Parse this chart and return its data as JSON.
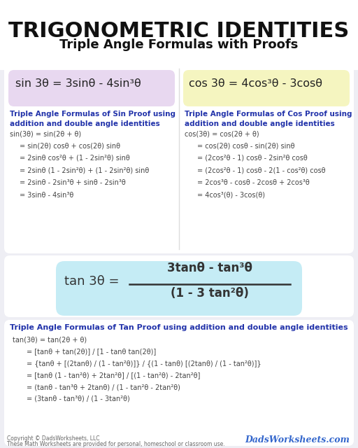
{
  "title": "TRIGONOMETRIC IDENTITIES",
  "subtitle": "Triple Angle Formulas with Proofs",
  "bg_color": "#eeeef4",
  "white_panel_color": "#ffffff",
  "sin_box_color": "#e8d8f0",
  "cos_box_color": "#f5f5c0",
  "tan_box_color": "#c5ecf5",
  "header_text_color": "#111111",
  "blue_text_color": "#2233aa",
  "proof_text_color": "#444444",
  "watermark_color": "#3366cc",
  "sin_proof_title": "Triple Angle Formulas of Sin Proof using\naddition and double angle identities",
  "cos_proof_title": "Triple Angle Formulas of Cos Proof using\naddition and double angle identities",
  "tan_proof_title": "Triple Angle Formulas of Tan Proof using addition and double angle identities",
  "sin_proof_lines": [
    "sin(3θ) = sin(2θ + θ)",
    "= sin(2θ) cosθ + cos(2θ) sinθ",
    "= 2sinθ cos²θ + (1 - 2sin²θ) sinθ",
    "= 2sinθ (1 - 2sin²θ) + (1 - 2sin²θ) sinθ",
    "= 2sinθ - 2sin³θ + sinθ - 2sin³θ",
    "= 3sinθ - 4sin³θ"
  ],
  "cos_proof_lines": [
    "cos(3θ) = cos(2θ + θ)",
    "= cos(2θ) cosθ - sin(2θ) sinθ",
    "= (2cos²θ - 1) cosθ - 2sin²θ cosθ",
    "= (2cos²θ - 1) cosθ - 2(1 - cos²θ) cosθ",
    "= 2cos³θ - cosθ - 2cosθ + 2cos³θ",
    "= 4cos³(θ) - 3cos(θ)"
  ],
  "tan_proof_lines": [
    "tan(3θ) = tan(2θ + θ)",
    "= [tanθ + tan(2θ)] / [1 - tanθ tan(2θ)]",
    "= {tanθ + [(2tanθ) / (1 - tan²θ)]} / {(1 - tanθ) [(2tanθ) / (1 - tan²θ)]}",
    "= [tanθ (1 - tan²θ) + 2tan²θ] / [(1 - tan²θ) - 2tan²θ]",
    "= (tanθ - tan³θ + 2tanθ) / (1 - tan²θ - 2tan²θ)",
    "= (3tanθ - tan³θ) / (1 - 3tan²θ)"
  ],
  "copyright_line1": "Copyright © DadsWorksheets, LLC",
  "copyright_line2": "These Math Worksheets are provided for personal, homeschool or classroom use.",
  "watermark": "DadsWorksheets.com"
}
